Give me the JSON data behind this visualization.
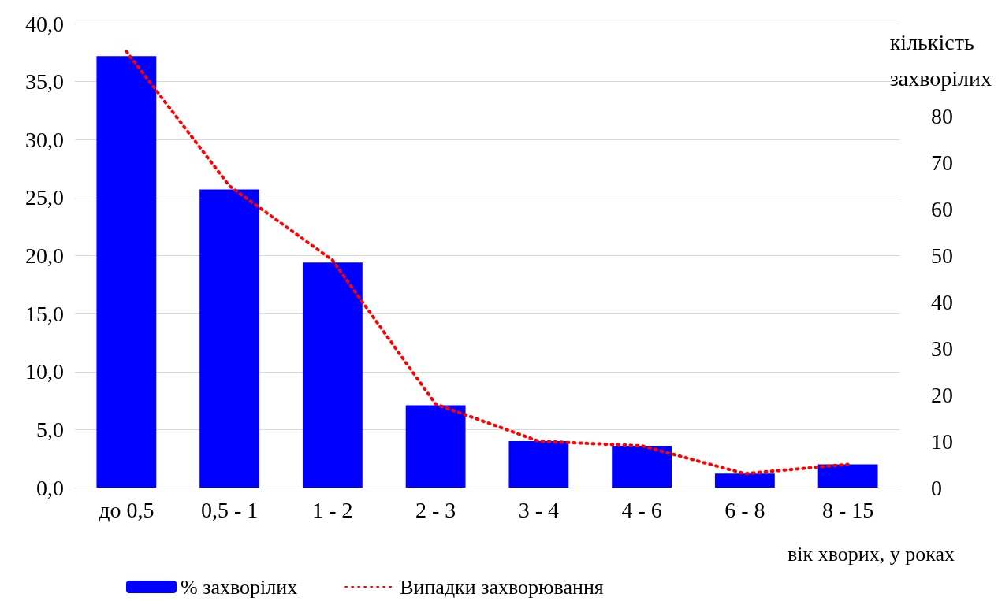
{
  "chart_data": {
    "type": "bar",
    "xlabel": "вік хворих, у роках",
    "y2label": "кількість захворілих",
    "categories": [
      "до 0,5",
      "0,5 - 1",
      "1 - 2",
      "2 - 3",
      "3 - 4",
      "4 - 6",
      "6 - 8",
      "8 - 15"
    ],
    "series": [
      {
        "name": "% захворілих",
        "color": "#0000ff",
        "values": [
          37.2,
          25.7,
          19.4,
          7.1,
          4.0,
          3.6,
          1.2,
          2.0
        ]
      },
      {
        "name": "Випадки захворювання",
        "type": "line",
        "axis": "y2",
        "color": "#ff0000",
        "line_style": "dotted",
        "marker": "none",
        "values": [
          94,
          65,
          49,
          18,
          10,
          9,
          3,
          5
        ]
      }
    ],
    "ylim": [
      0,
      40
    ],
    "yticks": [
      {
        "value": 0,
        "label": "0,0"
      },
      {
        "value": 5,
        "label": "5,0"
      },
      {
        "value": 10,
        "label": "10,0"
      },
      {
        "value": 15,
        "label": "15,0"
      },
      {
        "value": 20,
        "label": "20,0"
      },
      {
        "value": 25,
        "label": "25,0"
      },
      {
        "value": 30,
        "label": "30,0"
      },
      {
        "value": 35,
        "label": "35,0"
      },
      {
        "value": 40,
        "label": "40,0"
      }
    ],
    "y2lim": [
      0,
      100
    ],
    "y2ticks": [
      0,
      10,
      20,
      30,
      40,
      50,
      60,
      70,
      80
    ],
    "grid": "y",
    "legend": "bottom left"
  }
}
